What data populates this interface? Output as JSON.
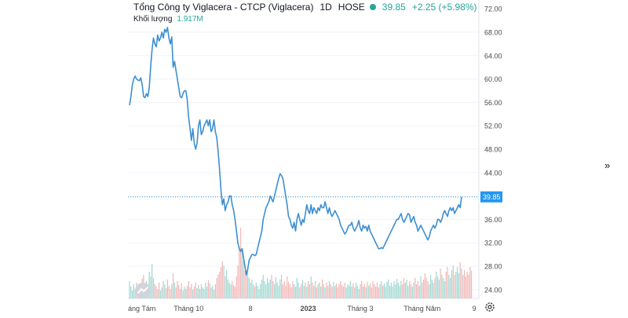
{
  "header": {
    "symbol": "Tổng Công ty Viglacera - CTCP (Viglacera)",
    "interval": "1D",
    "exchange": "HOSE",
    "price": "39.85",
    "change": "+2.25 (+5.98%)",
    "volume_label": "Khối lượng",
    "volume_value": "1.917M"
  },
  "controls": {
    "collapse_glyph": "»"
  },
  "icons": [
    "tradingview-logo-icon",
    "settings-gear-icon",
    "chevron-double-right-icon"
  ],
  "colors": {
    "line": "#3d8fd1",
    "up": "#26a69a",
    "vol_up": "#a3d9d3",
    "vol_down": "#f2b8b8",
    "price_label_bg": "#2196f3",
    "axis_text": "#4a4a4a",
    "grid": "#f0f3fa"
  },
  "chart_data": {
    "type": "line",
    "title": "Tổng Công ty Viglacera - CTCP (Viglacera)",
    "current_price": 39.85,
    "y_ticks": [
      24,
      28,
      32,
      36,
      40,
      44,
      48,
      52,
      56,
      60,
      64,
      68,
      72
    ],
    "y_tick_labels": [
      "24.00",
      "28.00",
      "32.00",
      "36.00",
      "40.00",
      "44.00",
      "48.00",
      "52.00",
      "56.00",
      "60.00",
      "64.00",
      "68.00",
      "72.00"
    ],
    "ylim": [
      22.5,
      73.5
    ],
    "x_tick_labels": [
      "áng Tám",
      "Tháng 10",
      "8",
      "2023",
      "Tháng 3",
      "Tháng Năm",
      "9"
    ],
    "x_tick_index": [
      0,
      42,
      86,
      127,
      164,
      208,
      245
    ],
    "series": [
      {
        "values": [
          55.5,
          57,
          59,
          60,
          60.5,
          60,
          59.8,
          59.7,
          60.2,
          59,
          57,
          56.8,
          57.5,
          57,
          58.5,
          62,
          65,
          67,
          66,
          65.5,
          67.5,
          66.5,
          67,
          68,
          67,
          68.5,
          68,
          68.8,
          67,
          66,
          67.2,
          62,
          63,
          61.5,
          60,
          58.5,
          57,
          56.8,
          57.5,
          58,
          58,
          56.5,
          53.5,
          51.5,
          49.5,
          51.5,
          49,
          48,
          49,
          52,
          53,
          50.5,
          51,
          52,
          52.5,
          53,
          52,
          53,
          51,
          51.5,
          53,
          51,
          50,
          47.5,
          44.5,
          41,
          38.5,
          39.5,
          37.5,
          38.5,
          39,
          40,
          40,
          38.5,
          37.5,
          36,
          34,
          32,
          31,
          30.5,
          31,
          29.5,
          28,
          26.5,
          27.5,
          29,
          29.5,
          30,
          30,
          29.8,
          30,
          31,
          32,
          33,
          34,
          36,
          37,
          38,
          38.5,
          39,
          40,
          39.5,
          39,
          40,
          41,
          42,
          43,
          43.8,
          43.5,
          43,
          41.5,
          40,
          38.5,
          36.5,
          36,
          35,
          34.5,
          35.5,
          34,
          36,
          37,
          36,
          35,
          36,
          35.5,
          37,
          38.5,
          37.5,
          37,
          38.5,
          37,
          38,
          37.5,
          37,
          38,
          37.5,
          38.5,
          38,
          38,
          39,
          38,
          37,
          38,
          37,
          36.5,
          37,
          37.5,
          37,
          36.5,
          36,
          35,
          34.5,
          34,
          33.5,
          33.8,
          34.5,
          35,
          35,
          35.5,
          34.5,
          34,
          34.5,
          35,
          35.8,
          34.5,
          34,
          35,
          34.5,
          34.8,
          34,
          35,
          34,
          33.5,
          33,
          32.5,
          32,
          31.5,
          31,
          31,
          31.2,
          31,
          31.5,
          32,
          32.5,
          33,
          33.5,
          34,
          34.5,
          35,
          35.5,
          36,
          36,
          36.5,
          37,
          36,
          35.5,
          36,
          36.5,
          37,
          36.8,
          35.5,
          36,
          36.5,
          35.5,
          35,
          34,
          34.5,
          35,
          34.5,
          34,
          33.5,
          33,
          32.5,
          33,
          34,
          34.5,
          35,
          34.5,
          35,
          36,
          36,
          35.5,
          36,
          37,
          37.5,
          37,
          36.5,
          37.5,
          38,
          37.5,
          38,
          37,
          37.5,
          38,
          38.5,
          38,
          39.85
        ]
      }
    ],
    "volume_scale": "relative",
    "volume": [
      0.22,
      0.15,
      0.1,
      0.18,
      0.12,
      0.2,
      0.08,
      0.16,
      0.14,
      0.25,
      0.3,
      0.19,
      0.22,
      0.11,
      0.34,
      0.28,
      0.44,
      0.26,
      0.18,
      0.15,
      0.12,
      0.2,
      0.1,
      0.14,
      0.22,
      0.18,
      0.13,
      0.24,
      0.16,
      0.12,
      0.18,
      0.32,
      0.2,
      0.14,
      0.22,
      0.17,
      0.12,
      0.19,
      0.1,
      0.15,
      0.12,
      0.16,
      0.22,
      0.14,
      0.18,
      0.11,
      0.15,
      0.2,
      0.13,
      0.17,
      0.12,
      0.18,
      0.14,
      0.12,
      0.2,
      0.15,
      0.23,
      0.19,
      0.14,
      0.16,
      0.11,
      0.18,
      0.26,
      0.3,
      0.34,
      0.4,
      0.47,
      0.42,
      0.28,
      0.36,
      0.24,
      0.2,
      0.18,
      0.22,
      0.17,
      0.15,
      0.28,
      0.42,
      0.66,
      0.9,
      0.6,
      0.48,
      0.35,
      0.3,
      0.4,
      0.26,
      0.2,
      0.24,
      0.18,
      0.15,
      0.2,
      0.16,
      0.12,
      0.18,
      0.24,
      0.3,
      0.22,
      0.18,
      0.26,
      0.2,
      0.24,
      0.3,
      0.22,
      0.18,
      0.27,
      0.2,
      0.16,
      0.24,
      0.3,
      0.18,
      0.22,
      0.16,
      0.28,
      0.21,
      0.18,
      0.14,
      0.22,
      0.18,
      0.15,
      0.26,
      0.2,
      0.14,
      0.18,
      0.23,
      0.16,
      0.2,
      0.15,
      0.22,
      0.18,
      0.28,
      0.2,
      0.16,
      0.22,
      0.14,
      0.18,
      0.2,
      0.15,
      0.24,
      0.18,
      0.14,
      0.2,
      0.16,
      0.22,
      0.18,
      0.15,
      0.21,
      0.16,
      0.19,
      0.14,
      0.18,
      0.22,
      0.17,
      0.15,
      0.2,
      0.14,
      0.18,
      0.16,
      0.22,
      0.15,
      0.19,
      0.14,
      0.2,
      0.16,
      0.12,
      0.18,
      0.22,
      0.15,
      0.18,
      0.14,
      0.21,
      0.16,
      0.19,
      0.14,
      0.22,
      0.18,
      0.15,
      0.2,
      0.14,
      0.18,
      0.22,
      0.16,
      0.19,
      0.15,
      0.21,
      0.24,
      0.16,
      0.2,
      0.15,
      0.22,
      0.18,
      0.25,
      0.2,
      0.16,
      0.22,
      0.18,
      0.26,
      0.2,
      0.24,
      0.16,
      0.22,
      0.18,
      0.15,
      0.2,
      0.26,
      0.18,
      0.22,
      0.16,
      0.28,
      0.2,
      0.24,
      0.32,
      0.26,
      0.22,
      0.18,
      0.3,
      0.24,
      0.2,
      0.26,
      0.34,
      0.28,
      0.24,
      0.38,
      0.3,
      0.26,
      0.22,
      0.34,
      0.4,
      0.3,
      0.26,
      0.36,
      0.42,
      0.3,
      0.34,
      0.4,
      0.32,
      0.46,
      0.38,
      0.3,
      0.36,
      0.28,
      0.34,
      0.3,
      0.4,
      0.35
    ],
    "grid": true,
    "legend": "top-left"
  }
}
